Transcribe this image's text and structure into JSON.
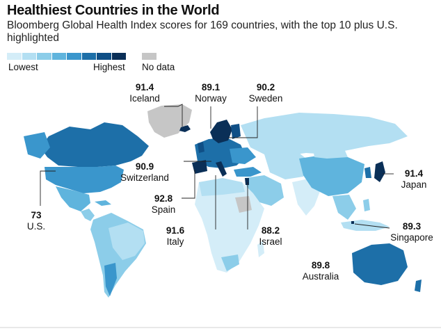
{
  "title": "Healthiest Countries in the World",
  "subtitle": "Bloomberg Global Health Index scores for 169 countries, with the top 10 plus U.S. highlighted",
  "legend": {
    "lowest": "Lowest",
    "highest": "Highest",
    "no_data": "No data",
    "scale_colors": [
      "#d4edf8",
      "#b3dff2",
      "#8ccde9",
      "#5fb4dd",
      "#3a96cc",
      "#1d6fa8",
      "#0f4f86",
      "#0a2f57"
    ],
    "no_data_color": "#c6c6c6"
  },
  "annotations": {
    "iceland": {
      "value": "91.4",
      "country": "Iceland"
    },
    "norway": {
      "value": "89.1",
      "country": "Norway"
    },
    "sweden": {
      "value": "90.2",
      "country": "Sweden"
    },
    "switzerland": {
      "value": "90.9",
      "country": "Switzerland"
    },
    "spain": {
      "value": "92.8",
      "country": "Spain"
    },
    "italy": {
      "value": "91.6",
      "country": "Italy"
    },
    "israel": {
      "value": "88.2",
      "country": "Israel"
    },
    "japan": {
      "value": "91.4",
      "country": "Japan"
    },
    "singapore": {
      "value": "89.3",
      "country": "Singapore"
    },
    "australia": {
      "value": "89.8",
      "country": "Australia"
    },
    "us": {
      "value": "73",
      "country": "U.S."
    }
  }
}
